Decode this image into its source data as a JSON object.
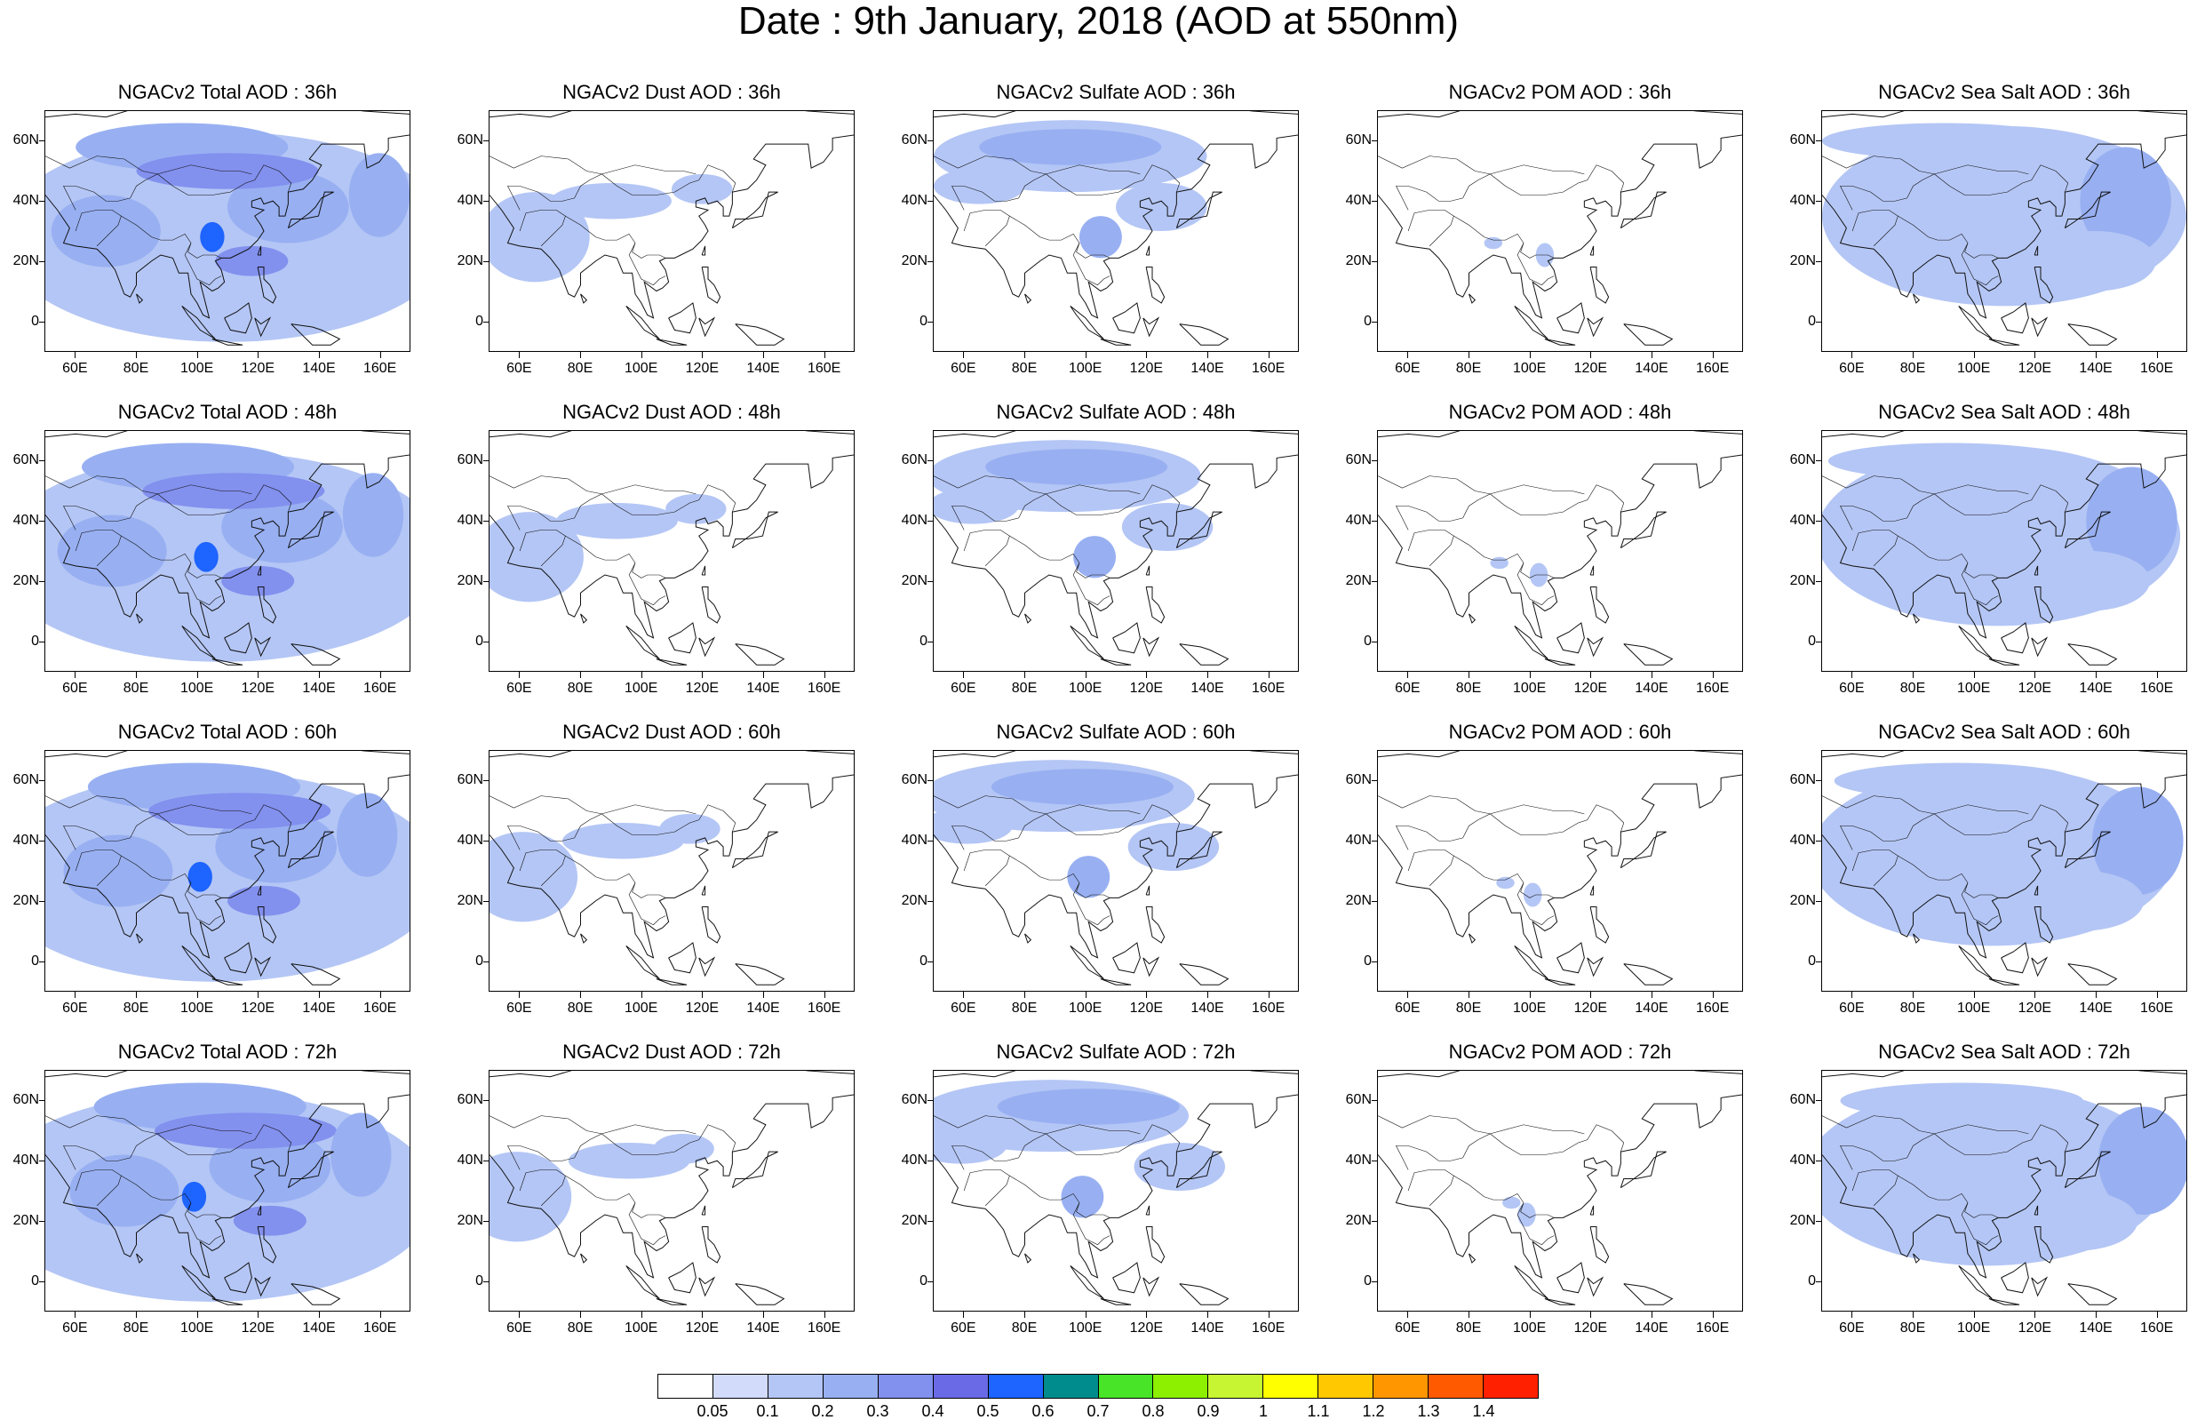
{
  "title": "Date : 9th January, 2018 (AOD at 550nm)",
  "map": {
    "lon_range": [
      50,
      170
    ],
    "lat_range": [
      -10,
      70
    ],
    "lon_ticks": [
      "60E",
      "80E",
      "100E",
      "120E",
      "140E",
      "160E"
    ],
    "lat_ticks": [
      "60N",
      "40N",
      "20N",
      "0"
    ]
  },
  "panels": [
    {
      "title": "NGACv2 Total AOD : 36h",
      "species": "total",
      "lead": 36
    },
    {
      "title": "NGACv2 Dust AOD : 36h",
      "species": "dust",
      "lead": 36
    },
    {
      "title": "NGACv2 Sulfate AOD : 36h",
      "species": "sulfate",
      "lead": 36
    },
    {
      "title": "NGACv2 POM AOD : 36h",
      "species": "pom",
      "lead": 36
    },
    {
      "title": "NGACv2 Sea Salt AOD : 36h",
      "species": "seasalt",
      "lead": 36
    },
    {
      "title": "NGACv2 Total AOD : 48h",
      "species": "total",
      "lead": 48
    },
    {
      "title": "NGACv2 Dust AOD : 48h",
      "species": "dust",
      "lead": 48
    },
    {
      "title": "NGACv2 Sulfate AOD : 48h",
      "species": "sulfate",
      "lead": 48
    },
    {
      "title": "NGACv2 POM AOD : 48h",
      "species": "pom",
      "lead": 48
    },
    {
      "title": "NGACv2 Sea Salt AOD : 48h",
      "species": "seasalt",
      "lead": 48
    },
    {
      "title": "NGACv2 Total AOD : 60h",
      "species": "total",
      "lead": 60
    },
    {
      "title": "NGACv2 Dust AOD : 60h",
      "species": "dust",
      "lead": 60
    },
    {
      "title": "NGACv2 Sulfate AOD : 60h",
      "species": "sulfate",
      "lead": 60
    },
    {
      "title": "NGACv2 POM AOD : 60h",
      "species": "pom",
      "lead": 60
    },
    {
      "title": "NGACv2 Sea Salt AOD : 60h",
      "species": "seasalt",
      "lead": 60
    },
    {
      "title": "NGACv2 Total AOD : 72h",
      "species": "total",
      "lead": 72
    },
    {
      "title": "NGACv2 Dust AOD : 72h",
      "species": "dust",
      "lead": 72
    },
    {
      "title": "NGACv2 Sulfate AOD : 72h",
      "species": "sulfate",
      "lead": 72
    },
    {
      "title": "NGACv2 POM AOD : 72h",
      "species": "pom",
      "lead": 72
    },
    {
      "title": "NGACv2 Sea Salt  AOD : 72h",
      "species": "seasalt",
      "lead": 72
    }
  ],
  "colorbar": {
    "labels": [
      "0.05",
      "0.1",
      "0.2",
      "0.3",
      "0.4",
      "0.5",
      "0.6",
      "0.7",
      "0.8",
      "0.9",
      "1",
      "1.1",
      "1.2",
      "1.3",
      "1.4"
    ],
    "colors": [
      "#ffffff",
      "#d2dcfa",
      "#b4c6f5",
      "#98b0f2",
      "#8290ee",
      "#6a6ae6",
      "#1e64ff",
      "#008c8c",
      "#48e428",
      "#8cf000",
      "#c8f532",
      "#ffff00",
      "#ffc800",
      "#ff9600",
      "#ff5a00",
      "#ff2000"
    ]
  }
}
